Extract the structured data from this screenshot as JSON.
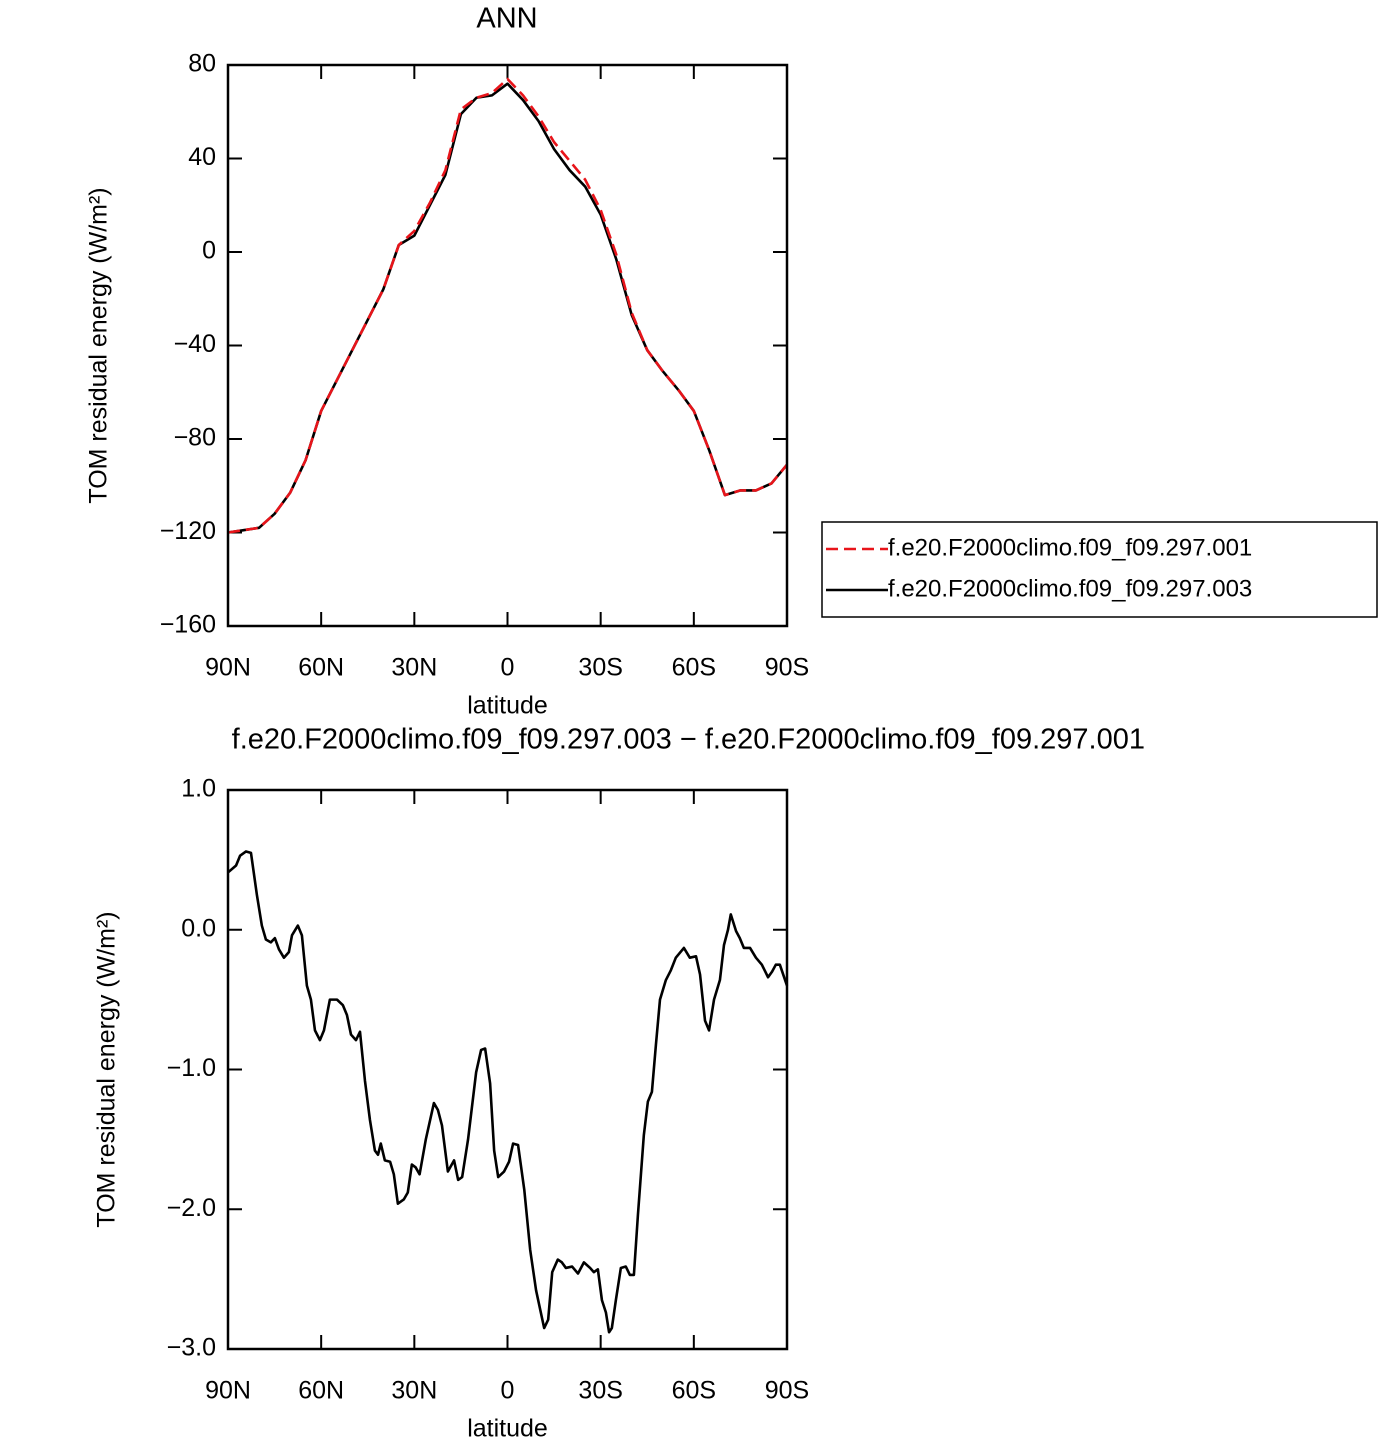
{
  "chart_data": [
    {
      "type": "line",
      "title": "ANN",
      "x_label": "latitude",
      "y_label": "TOM residual energy (W/m²)",
      "x": [
        90,
        85,
        80,
        75,
        70,
        65,
        60,
        55,
        50,
        45,
        40,
        35,
        30,
        25,
        20,
        15,
        10,
        5,
        0,
        -5,
        -10,
        -15,
        -20,
        -25,
        -30,
        -35,
        -40,
        -45,
        -50,
        -55,
        -60,
        -65,
        -70,
        -75,
        -80,
        -85,
        -90
      ],
      "series": [
        {
          "name": "f.e20.F2000climo.f09_f09.297.001",
          "color": "#e8141a",
          "dashed": true,
          "values": [
            -120,
            -119,
            -118,
            -112,
            -103,
            -89,
            -68,
            -55,
            -42,
            -29,
            -16,
            3,
            9,
            21,
            35,
            61,
            66,
            68,
            74,
            67,
            58,
            47,
            39,
            31,
            18,
            -1,
            -26,
            -42,
            -51,
            -59,
            -68,
            -85,
            -104,
            -102,
            -102,
            -99,
            -91
          ]
        },
        {
          "name": "f.e20.F2000climo.f09_f09.297.003",
          "color": "#000000",
          "dashed": false,
          "values": [
            -120,
            -119,
            -118,
            -112,
            -103,
            -89,
            -68,
            -55,
            -42,
            -29,
            -16,
            3,
            7,
            20,
            33,
            59,
            66,
            67,
            72,
            65,
            56,
            44,
            35,
            28,
            16,
            -3,
            -27,
            -42,
            -51,
            -59,
            -68,
            -85,
            -104,
            -102,
            -102,
            -99,
            -91
          ]
        }
      ],
      "xlim": [
        90,
        -90
      ],
      "xticks": [
        {
          "value": 90,
          "label": "90N"
        },
        {
          "value": 60,
          "label": "60N"
        },
        {
          "value": 30,
          "label": "30N"
        },
        0,
        {
          "value": -30,
          "label": "30S"
        },
        {
          "value": -60,
          "label": "60S"
        },
        {
          "value": -90,
          "label": "90S"
        }
      ],
      "ylim": [
        -160,
        80
      ],
      "yticks": [
        80,
        40,
        0,
        {
          "value": -40,
          "label": "−40"
        },
        {
          "value": -80,
          "label": "−80"
        },
        {
          "value": -120,
          "label": "−120"
        },
        {
          "value": -160,
          "label": "−160"
        }
      ],
      "legend": "right"
    },
    {
      "type": "line",
      "title": "f.e20.F2000climo.f09_f09.297.003 − f.e20.F2000climo.f09_f09.297.001",
      "x_label": "latitude",
      "y_label": "TOM residual energy (W/m²)",
      "x": [
        90,
        87.4,
        86.1,
        84.2,
        82.6,
        80.7,
        79.1,
        77.8,
        76.2,
        74.9,
        73.6,
        72.0,
        70.4,
        69.4,
        67.5,
        66.2,
        64.6,
        63.3,
        62.0,
        60.4,
        59.1,
        57.2,
        54.9,
        53.0,
        51.7,
        50.4,
        48.8,
        47.5,
        45.9,
        44.3,
        42.7,
        41.7,
        40.8,
        39.5,
        37.8,
        36.6,
        35.3,
        33.4,
        32.1,
        30.8,
        29.6,
        28.3,
        26.3,
        23.7,
        22.4,
        21.1,
        19.2,
        17.2,
        15.9,
        14.6,
        12.7,
        10.1,
        8.5,
        7.2,
        5.6,
        4.3,
        3.0,
        1.1,
        -0.5,
        -1.8,
        -3.4,
        -5.4,
        -7.3,
        -9.2,
        -11.8,
        -13.1,
        -14.4,
        -16.2,
        -17.5,
        -18.8,
        -20.8,
        -22.7,
        -24.6,
        -26.6,
        -27.8,
        -29.1,
        -30.4,
        -31.7,
        -32.7,
        -33.6,
        -34.9,
        -36.5,
        -38.1,
        -39.4,
        -40.7,
        -42.0,
        -43.9,
        -45.2,
        -46.5,
        -47.8,
        -49.1,
        -51.0,
        -52.6,
        -54.2,
        -56.8,
        -58.7,
        -60.7,
        -62.0,
        -63.6,
        -64.9,
        -66.5,
        -68.4,
        -69.7,
        -71.0,
        -71.9,
        -73.6,
        -74.8,
        -76.1,
        -78.1,
        -80.0,
        -81.9,
        -83.9,
        -85.2,
        -86.4,
        -87.7,
        -90
      ],
      "values": [
        0.41,
        0.46,
        0.53,
        0.56,
        0.55,
        0.25,
        0.03,
        -0.07,
        -0.09,
        -0.06,
        -0.14,
        -0.2,
        -0.16,
        -0.04,
        0.03,
        -0.04,
        -0.4,
        -0.5,
        -0.72,
        -0.79,
        -0.72,
        -0.5,
        -0.5,
        -0.54,
        -0.61,
        -0.75,
        -0.79,
        -0.73,
        -1.08,
        -1.36,
        -1.58,
        -1.61,
        -1.53,
        -1.65,
        -1.66,
        -1.75,
        -1.96,
        -1.93,
        -1.88,
        -1.68,
        -1.7,
        -1.75,
        -1.5,
        -1.24,
        -1.29,
        -1.4,
        -1.73,
        -1.65,
        -1.79,
        -1.77,
        -1.5,
        -1.02,
        -0.86,
        -0.85,
        -1.1,
        -1.58,
        -1.77,
        -1.73,
        -1.66,
        -1.53,
        -1.54,
        -1.86,
        -2.29,
        -2.58,
        -2.85,
        -2.79,
        -2.45,
        -2.36,
        -2.38,
        -2.42,
        -2.41,
        -2.46,
        -2.38,
        -2.42,
        -2.45,
        -2.43,
        -2.65,
        -2.74,
        -2.88,
        -2.85,
        -2.65,
        -2.42,
        -2.41,
        -2.47,
        -2.47,
        -2.04,
        -1.47,
        -1.23,
        -1.16,
        -0.82,
        -0.5,
        -0.36,
        -0.29,
        -0.2,
        -0.13,
        -0.2,
        -0.19,
        -0.32,
        -0.65,
        -0.72,
        -0.5,
        -0.36,
        -0.11,
        0,
        0.11,
        -0.01,
        -0.06,
        -0.13,
        -0.13,
        -0.2,
        -0.25,
        -0.34,
        -0.3,
        -0.25,
        -0.25,
        -0.4
      ],
      "color": "#000000",
      "xlim": [
        90,
        -90
      ],
      "xticks": [
        {
          "value": 90,
          "label": "90N"
        },
        {
          "value": 60,
          "label": "60N"
        },
        {
          "value": 30,
          "label": "30N"
        },
        0,
        {
          "value": -30,
          "label": "30S"
        },
        {
          "value": -60,
          "label": "60S"
        },
        {
          "value": -90,
          "label": "90S"
        }
      ],
      "ylim": [
        -3,
        1
      ],
      "yticks": [
        {
          "value": 1,
          "label": "1.0"
        },
        {
          "value": 0,
          "label": "0.0"
        },
        {
          "value": -1,
          "label": "−1.0"
        },
        {
          "value": -2,
          "label": "−2.0"
        },
        {
          "value": -3,
          "label": "−3.0"
        }
      ]
    }
  ]
}
